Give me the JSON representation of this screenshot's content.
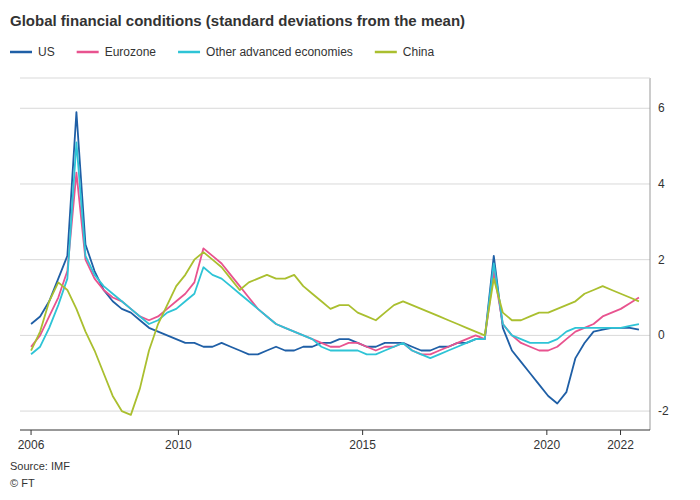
{
  "chart_data": {
    "type": "line",
    "title": "Global financial conditions (standard deviations from the mean)",
    "source": "Source: IMF",
    "copyright": "© FT",
    "x": [
      2006,
      2006.2463,
      2006.4925,
      2006.7388,
      2006.9851,
      2007.2313,
      2007.4776,
      2007.7239,
      2007.9701,
      2008.2164,
      2008.4627,
      2008.709,
      2008.9552,
      2009.2015,
      2009.4478,
      2009.694,
      2009.9403,
      2010.1866,
      2010.4328,
      2010.6791,
      2010.9254,
      2011.1716,
      2011.4179,
      2011.6642,
      2011.9104,
      2012.1567,
      2012.403,
      2012.6493,
      2012.8955,
      2013.1418,
      2013.3881,
      2013.6343,
      2013.8806,
      2014.1269,
      2014.3731,
      2014.6194,
      2014.8657,
      2015.1119,
      2015.3582,
      2015.6045,
      2015.8507,
      2016.097,
      2016.3433,
      2016.5896,
      2016.8358,
      2017.0821,
      2017.3284,
      2017.5746,
      2017.8209,
      2018.0672,
      2018.3134,
      2018.5597,
      2018.806,
      2019.0522,
      2019.2985,
      2019.5448,
      2019.791,
      2020.0373,
      2020.2836,
      2020.5299,
      2020.7761,
      2021.0224,
      2021.2687,
      2021.5149,
      2021.7612,
      2022.0075,
      2022.2537,
      2022.5
    ],
    "series": [
      {
        "name": "US",
        "color": "#1f5fa6",
        "values": [
          0.3,
          0.5,
          0.9,
          1.5,
          2.1,
          5.9,
          2.4,
          1.7,
          1.2,
          0.9,
          0.7,
          0.6,
          0.4,
          0.2,
          0.1,
          0.0,
          -0.1,
          -0.2,
          -0.2,
          -0.3,
          -0.3,
          -0.2,
          -0.3,
          -0.4,
          -0.5,
          -0.5,
          -0.4,
          -0.3,
          -0.4,
          -0.4,
          -0.3,
          -0.3,
          -0.2,
          -0.2,
          -0.1,
          -0.1,
          -0.2,
          -0.3,
          -0.3,
          -0.2,
          -0.2,
          -0.2,
          -0.3,
          -0.4,
          -0.4,
          -0.3,
          -0.3,
          -0.2,
          -0.2,
          -0.1,
          -0.1,
          2.1,
          0.2,
          -0.4,
          -0.7,
          -1.0,
          -1.3,
          -1.6,
          -1.8,
          -1.5,
          -0.6,
          -0.2,
          0.1,
          0.15,
          0.2,
          0.2,
          0.2,
          0.15
        ]
      },
      {
        "name": "Eurozone",
        "color": "#e8538f",
        "values": [
          -0.3,
          0.0,
          0.5,
          1.0,
          1.7,
          4.3,
          2.0,
          1.5,
          1.2,
          1.0,
          0.9,
          0.7,
          0.5,
          0.4,
          0.5,
          0.7,
          0.9,
          1.1,
          1.4,
          2.3,
          2.1,
          1.9,
          1.6,
          1.3,
          1.0,
          0.7,
          0.5,
          0.3,
          0.2,
          0.1,
          0.0,
          -0.1,
          -0.2,
          -0.3,
          -0.3,
          -0.2,
          -0.2,
          -0.3,
          -0.4,
          -0.3,
          -0.3,
          -0.2,
          -0.4,
          -0.5,
          -0.5,
          -0.4,
          -0.3,
          -0.2,
          -0.1,
          0.0,
          -0.1,
          1.7,
          0.3,
          0.0,
          -0.2,
          -0.3,
          -0.4,
          -0.4,
          -0.3,
          -0.1,
          0.1,
          0.2,
          0.3,
          0.5,
          0.6,
          0.7,
          0.85,
          1.0
        ]
      },
      {
        "name": "Other advanced economies",
        "color": "#2ec4d6",
        "values": [
          -0.5,
          -0.3,
          0.2,
          0.8,
          1.5,
          5.1,
          2.1,
          1.6,
          1.3,
          1.1,
          0.9,
          0.7,
          0.5,
          0.3,
          0.4,
          0.6,
          0.7,
          0.9,
          1.1,
          1.8,
          1.6,
          1.5,
          1.3,
          1.1,
          0.9,
          0.7,
          0.5,
          0.3,
          0.2,
          0.1,
          0.0,
          -0.1,
          -0.3,
          -0.4,
          -0.4,
          -0.4,
          -0.4,
          -0.5,
          -0.5,
          -0.4,
          -0.3,
          -0.2,
          -0.4,
          -0.5,
          -0.6,
          -0.5,
          -0.4,
          -0.3,
          -0.2,
          -0.1,
          -0.1,
          1.9,
          0.3,
          0.0,
          -0.1,
          -0.2,
          -0.2,
          -0.2,
          -0.1,
          0.1,
          0.2,
          0.2,
          0.2,
          0.2,
          0.2,
          0.2,
          0.25,
          0.3
        ]
      },
      {
        "name": "China",
        "color": "#aabf2f",
        "values": [
          -0.4,
          0.1,
          0.9,
          1.4,
          1.2,
          0.7,
          0.1,
          -0.4,
          -1.0,
          -1.6,
          -2.0,
          -2.1,
          -1.4,
          -0.4,
          0.3,
          0.8,
          1.3,
          1.6,
          2.0,
          2.2,
          2.0,
          1.8,
          1.5,
          1.2,
          1.4,
          1.5,
          1.6,
          1.5,
          1.5,
          1.6,
          1.3,
          1.1,
          0.9,
          0.7,
          0.8,
          0.8,
          0.6,
          0.5,
          0.4,
          0.6,
          0.8,
          0.9,
          0.8,
          0.7,
          0.6,
          0.5,
          0.4,
          0.3,
          0.2,
          0.1,
          0.0,
          1.5,
          0.6,
          0.4,
          0.4,
          0.5,
          0.6,
          0.6,
          0.7,
          0.8,
          0.9,
          1.1,
          1.2,
          1.3,
          1.2,
          1.1,
          1.0,
          0.9
        ]
      }
    ],
    "xlim": [
      2005.7,
      2022.8
    ],
    "xticks": [
      2006,
      2010,
      2015,
      2020,
      2022
    ],
    "ylim": [
      -2.5,
      6.8
    ],
    "yticks": [
      -2,
      0,
      2,
      4,
      6
    ],
    "grid": true,
    "legend": "top"
  }
}
